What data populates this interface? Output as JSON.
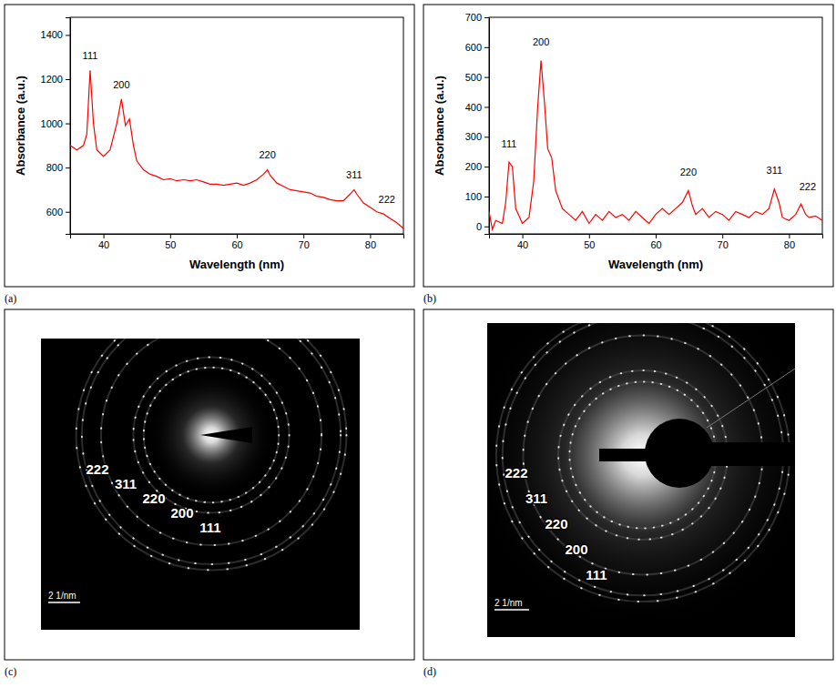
{
  "chart_data": [
    {
      "type": "line",
      "panel": "(a)",
      "color": "#ff0000",
      "x_label": "Wavelength (nm)",
      "y_label": "Absorbance (a.u.)",
      "xlim": [
        35,
        85
      ],
      "ylim": [
        500,
        1480
      ],
      "xticks": [
        40,
        50,
        60,
        70,
        80
      ],
      "yticks": [
        600,
        800,
        1000,
        1200,
        1400
      ],
      "x": [
        35,
        36,
        37,
        37.5,
        38,
        38.5,
        39,
        40,
        41,
        42,
        42.7,
        43.3,
        43.9,
        44.5,
        45,
        46,
        47,
        48,
        49,
        50,
        51,
        52,
        53,
        54,
        55,
        56,
        57,
        58,
        59,
        60,
        61,
        62,
        63,
        64,
        64.6,
        65,
        66,
        67,
        68,
        69,
        70,
        71,
        72,
        73,
        74,
        75,
        76,
        77,
        77.6,
        78,
        79,
        80,
        81,
        82,
        83,
        84,
        85
      ],
      "values": [
        900,
        880,
        900,
        950,
        1240,
        1000,
        880,
        850,
        880,
        1000,
        1110,
        990,
        1020,
        900,
        830,
        790,
        770,
        760,
        745,
        750,
        740,
        745,
        740,
        745,
        735,
        725,
        725,
        720,
        725,
        730,
        720,
        730,
        745,
        770,
        790,
        765,
        730,
        715,
        700,
        695,
        690,
        685,
        670,
        665,
        655,
        650,
        650,
        680,
        700,
        680,
        640,
        620,
        600,
        590,
        570,
        550,
        525
      ],
      "annotations": [
        {
          "text": "111",
          "x": 38,
          "y": 1290
        },
        {
          "text": "200",
          "x": 42.7,
          "y": 1160
        },
        {
          "text": "220",
          "x": 64.6,
          "y": 840
        },
        {
          "text": "311",
          "x": 77.6,
          "y": 750
        },
        {
          "text": "222",
          "x": 82.5,
          "y": 640
        }
      ]
    },
    {
      "type": "line",
      "panel": "(b)",
      "color": "#ff0000",
      "x_label": "Wavelength (nm)",
      "y_label": "Absorbance (a.u.)",
      "xlim": [
        35,
        85
      ],
      "ylim": [
        -25,
        700
      ],
      "xticks": [
        40,
        50,
        60,
        70,
        80
      ],
      "yticks": [
        0,
        100,
        200,
        300,
        400,
        500,
        600,
        700
      ],
      "x": [
        35,
        35.5,
        36,
        37,
        37.5,
        38,
        38.5,
        39,
        40,
        41,
        41.7,
        42.3,
        42.8,
        43.3,
        43.8,
        44.4,
        45,
        46,
        47,
        48,
        49,
        50,
        51,
        52,
        53,
        54,
        55,
        56,
        57,
        58,
        59,
        60,
        61,
        62,
        63,
        64,
        64.9,
        65.5,
        66,
        67,
        68,
        69,
        70,
        71,
        72,
        73,
        74,
        75,
        76,
        77,
        77.8,
        78.5,
        79,
        80,
        81,
        81.8,
        82.5,
        83,
        84,
        85
      ],
      "values": [
        50,
        -10,
        20,
        10,
        80,
        215,
        200,
        60,
        10,
        30,
        150,
        400,
        555,
        420,
        260,
        230,
        120,
        60,
        40,
        20,
        50,
        10,
        40,
        20,
        50,
        30,
        40,
        20,
        50,
        30,
        10,
        40,
        60,
        40,
        60,
        80,
        120,
        70,
        40,
        60,
        30,
        50,
        40,
        20,
        50,
        40,
        30,
        50,
        40,
        60,
        125,
        80,
        30,
        20,
        40,
        75,
        40,
        30,
        35,
        20
      ],
      "annotations": [
        {
          "text": "111",
          "x": 38,
          "y": 265
        },
        {
          "text": "200",
          "x": 42.8,
          "y": 605
        },
        {
          "text": "220",
          "x": 64.9,
          "y": 170
        },
        {
          "text": "311",
          "x": 77.8,
          "y": 175
        },
        {
          "text": "222",
          "x": 82.8,
          "y": 122
        }
      ]
    },
    {
      "type": "diffraction",
      "panel": "(c)",
      "categories": [
        "111",
        "200",
        "220",
        "311",
        "222"
      ],
      "values": [
        4.24,
        4.89,
        6.92,
        8.12,
        8.48
      ],
      "scale_bar": {
        "value": 2,
        "label": "2 1/nm"
      }
    },
    {
      "type": "diffraction",
      "panel": "(d)",
      "categories": [
        "111",
        "200",
        "220",
        "311",
        "222"
      ],
      "values": [
        4.24,
        4.89,
        6.92,
        8.12,
        8.48
      ],
      "scale_bar": {
        "value": 2,
        "label": "2 1/nm"
      }
    }
  ]
}
